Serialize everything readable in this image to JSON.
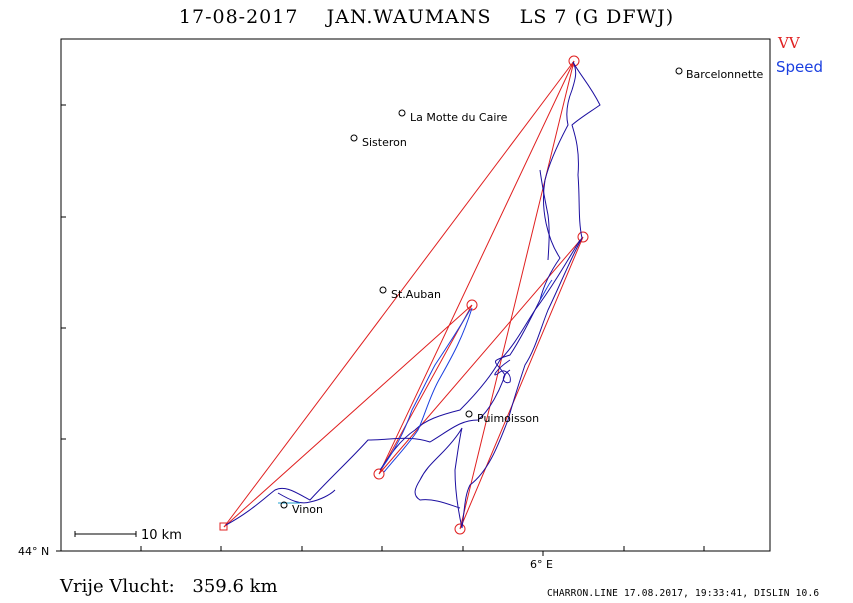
{
  "header": {
    "date": "17-08-2017",
    "pilot": "JAN.WAUMANS",
    "glider": "LS 7 (G DFWJ)"
  },
  "legend": {
    "vv": "VV",
    "speed": "Speed"
  },
  "places": [
    {
      "name": "Barcelonnette"
    },
    {
      "name": "La Motte du Caire"
    },
    {
      "name": "Sisteron"
    },
    {
      "name": "St.Auban"
    },
    {
      "name": "Puimoisson"
    },
    {
      "name": "Vinon"
    }
  ],
  "axes": {
    "lat_label": "44° N",
    "lon_label": "6° E"
  },
  "scale": {
    "label": "10 km"
  },
  "distance": {
    "label": "Vrije Vlucht:",
    "value": "359.6 km"
  },
  "footer": "CHARRON.LINE 17.08.2017, 19:33:41, DISLIN 10.6",
  "colors": {
    "track": "#1c0fa0",
    "speed": "#1a3fe0",
    "task": "#e02020",
    "slow": "#22a0d0"
  }
}
